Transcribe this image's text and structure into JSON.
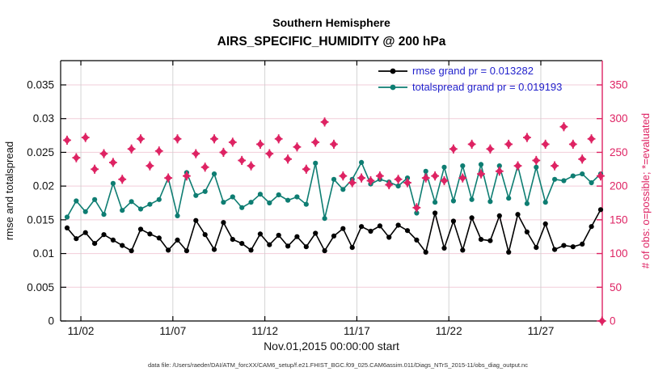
{
  "figure": {
    "title_line1": "Southern Hemisphere",
    "title_line2": "AIRS_SPECIFIC_HUMIDITY @ 200 hPa",
    "xlabel": "Nov.01,2015 00:00:00 start",
    "ylabel_left": "rmse and totalspread",
    "ylabel_right": "# of obs: o=possible; *=evaluated",
    "caption": "data file: /Users/raeder/DAI/ATM_forcXX/CAM6_setup/f.e21.FHIST_BGC.f09_025.CAM6assim.011/Diags_NTrS_2015-11/obs_diag_output.nc"
  },
  "legend": {
    "text_color": "#2222CC",
    "items": [
      {
        "label": "rmse grand pr = 0.013282",
        "color": "#000000"
      },
      {
        "label": "totalspread grand pr = 0.019193",
        "color": "#0E7D72"
      }
    ]
  },
  "colors": {
    "rmse_line": "#000000",
    "totalspread_line": "#0E7D72",
    "obs_marker": "#DE2363",
    "right_axis": "#DE2363",
    "grid_horizontal": "#F2CDD9",
    "grid_vertical": "#CFCFCF",
    "axis_box": "#000000"
  },
  "chart_data": {
    "type": "line",
    "title": "Southern Hemisphere — AIRS_SPECIFIC_HUMIDITY @ 200 hPa",
    "xlabel": "Nov.01,2015 00:00:00 start",
    "ylabel_left": "rmse and totalspread",
    "ylabel_right": "# of obs: o=possible; *=evaluated",
    "grid": true,
    "legend_position": "top-right-inside",
    "x_axis": {
      "unit": "day of Nov 2015",
      "range_days": [
        0.9,
        30.34
      ],
      "ticks": [
        {
          "day": 2,
          "label": "11/02"
        },
        {
          "day": 7,
          "label": "11/07"
        },
        {
          "day": 12,
          "label": "11/12"
        },
        {
          "day": 17,
          "label": "11/17"
        },
        {
          "day": 22,
          "label": "11/22"
        },
        {
          "day": 27,
          "label": "11/27"
        }
      ]
    },
    "y_left": {
      "min": 0,
      "max": 0.0386,
      "tick_values": [
        0,
        0.005,
        0.01,
        0.015,
        0.02,
        0.025,
        0.03,
        0.035
      ],
      "tick_labels": [
        "0",
        "0.005",
        "0.01",
        "0.015",
        "0.02",
        "0.025",
        "0.03",
        "0.035"
      ]
    },
    "y_right": {
      "min": 0,
      "max": 386,
      "tick_values": [
        0,
        50,
        100,
        150,
        200,
        250,
        300,
        350
      ],
      "tick_labels": [
        "0",
        "50",
        "100",
        "150",
        "200",
        "250",
        "300",
        "350"
      ]
    },
    "x_days": [
      1.25,
      1.75,
      2.25,
      2.75,
      3.25,
      3.75,
      4.25,
      4.75,
      5.25,
      5.75,
      6.25,
      6.75,
      7.25,
      7.75,
      8.25,
      8.75,
      9.25,
      9.75,
      10.25,
      10.75,
      11.25,
      11.75,
      12.25,
      12.75,
      13.25,
      13.75,
      14.25,
      14.75,
      15.25,
      15.75,
      16.25,
      16.75,
      17.25,
      17.75,
      18.25,
      18.75,
      19.25,
      19.75,
      20.25,
      20.75,
      21.25,
      21.75,
      22.25,
      22.75,
      23.25,
      23.75,
      24.25,
      24.75,
      25.25,
      25.75,
      26.25,
      26.75,
      27.25,
      27.75,
      28.25,
      28.75,
      29.25,
      29.75,
      30.25
    ],
    "series": [
      {
        "name": "rmse",
        "grand_mean": 0.013282,
        "color": "#000000",
        "marker": "circle",
        "values": [
          0.0138,
          0.0122,
          0.0131,
          0.0115,
          0.0128,
          0.012,
          0.0112,
          0.0104,
          0.0136,
          0.0129,
          0.0123,
          0.0105,
          0.012,
          0.0104,
          0.0149,
          0.0128,
          0.0106,
          0.0146,
          0.0121,
          0.0115,
          0.0105,
          0.0129,
          0.0113,
          0.0127,
          0.0111,
          0.0125,
          0.011,
          0.013,
          0.0104,
          0.0126,
          0.0137,
          0.0109,
          0.014,
          0.0133,
          0.0141,
          0.0124,
          0.0142,
          0.0134,
          0.012,
          0.0102,
          0.016,
          0.0108,
          0.0148,
          0.0105,
          0.0153,
          0.0121,
          0.0119,
          0.0156,
          0.0102,
          0.0158,
          0.0132,
          0.0109,
          0.0144,
          0.0106,
          0.0112,
          0.011,
          0.0114,
          0.014,
          0.0165
        ]
      },
      {
        "name": "totalspread",
        "grand_mean": 0.019193,
        "color": "#0E7D72",
        "marker": "circle",
        "values": [
          0.0154,
          0.0178,
          0.0162,
          0.018,
          0.0158,
          0.0204,
          0.0164,
          0.0177,
          0.0166,
          0.0173,
          0.018,
          0.0212,
          0.0156,
          0.022,
          0.0186,
          0.0192,
          0.0218,
          0.0176,
          0.0184,
          0.0168,
          0.0176,
          0.0188,
          0.0175,
          0.0187,
          0.0179,
          0.0184,
          0.0173,
          0.0234,
          0.0152,
          0.021,
          0.0195,
          0.021,
          0.0235,
          0.0203,
          0.021,
          0.0206,
          0.02,
          0.0212,
          0.016,
          0.0222,
          0.0176,
          0.0228,
          0.0178,
          0.023,
          0.018,
          0.0232,
          0.0177,
          0.023,
          0.0182,
          0.023,
          0.0174,
          0.0228,
          0.0176,
          0.021,
          0.0208,
          0.0215,
          0.0218,
          0.0205,
          0.0218
        ]
      }
    ],
    "obs_series": {
      "name": "# of obs (o=possible overlapping *=evaluated)",
      "color": "#DE2363",
      "marker": "o+*",
      "x_days": [
        1.25,
        1.75,
        2.25,
        2.75,
        3.25,
        3.75,
        4.25,
        4.75,
        5.25,
        5.75,
        6.25,
        6.75,
        7.25,
        7.75,
        8.25,
        8.75,
        9.25,
        9.75,
        10.25,
        10.75,
        11.25,
        11.75,
        12.25,
        12.75,
        13.25,
        13.75,
        14.25,
        14.75,
        15.25,
        15.75,
        16.25,
        16.75,
        17.25,
        17.75,
        18.25,
        18.75,
        19.25,
        19.75,
        20.25,
        20.75,
        21.25,
        21.75,
        22.25,
        22.75,
        23.25,
        23.75,
        24.25,
        24.75,
        25.25,
        25.75,
        26.25,
        26.75,
        27.25,
        27.75,
        28.25,
        28.75,
        29.25,
        29.75,
        30.25,
        30.33
      ],
      "values": [
        268,
        242,
        272,
        225,
        248,
        235,
        210,
        255,
        270,
        230,
        252,
        212,
        270,
        215,
        248,
        228,
        270,
        250,
        265,
        238,
        230,
        262,
        248,
        270,
        240,
        258,
        225,
        265,
        295,
        262,
        215,
        205,
        212,
        208,
        215,
        202,
        210,
        205,
        168,
        212,
        215,
        208,
        255,
        212,
        262,
        218,
        255,
        222,
        262,
        230,
        272,
        238,
        262,
        230,
        288,
        262,
        240,
        270,
        215,
        0
      ]
    }
  }
}
